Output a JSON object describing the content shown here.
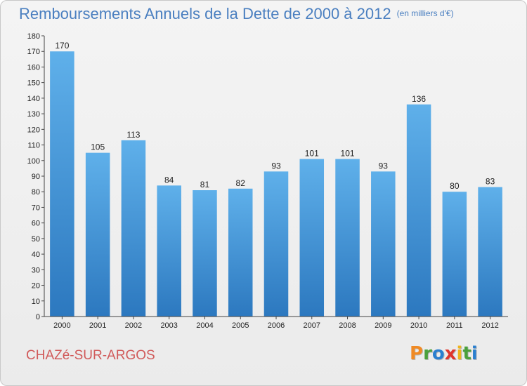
{
  "title": "Remboursements Annuels de la Dette de 2000 à 2012",
  "unit": "(en milliers d'€)",
  "city": "CHAZé-SUR-ARGOS",
  "logo": {
    "letters": [
      "P",
      "r",
      "o",
      "x",
      "i",
      "t",
      "i"
    ],
    "colors": [
      "#f08a24",
      "#4aa03c",
      "#2a7fcf",
      "#e0352b",
      "#f0b41c",
      "#4aa03c",
      "#2a7fcf"
    ]
  },
  "colors": {
    "bar_top": "#5fb0ea",
    "bar_bottom": "#2c78bf",
    "title": "#4a7fc0",
    "city": "#d15a5a"
  },
  "chart_data": {
    "type": "bar",
    "categories": [
      "2000",
      "2001",
      "2002",
      "2003",
      "2004",
      "2005",
      "2006",
      "2007",
      "2008",
      "2009",
      "2010",
      "2011",
      "2012"
    ],
    "values": [
      170,
      105,
      113,
      84,
      81,
      82,
      93,
      101,
      101,
      93,
      136,
      80,
      83
    ],
    "title": "Remboursements Annuels de la Dette de 2000 à 2012",
    "ylabel": "",
    "xlabel": "",
    "ylim": [
      0,
      180
    ],
    "ytick_step": 10,
    "grid": false,
    "legend": "none"
  }
}
